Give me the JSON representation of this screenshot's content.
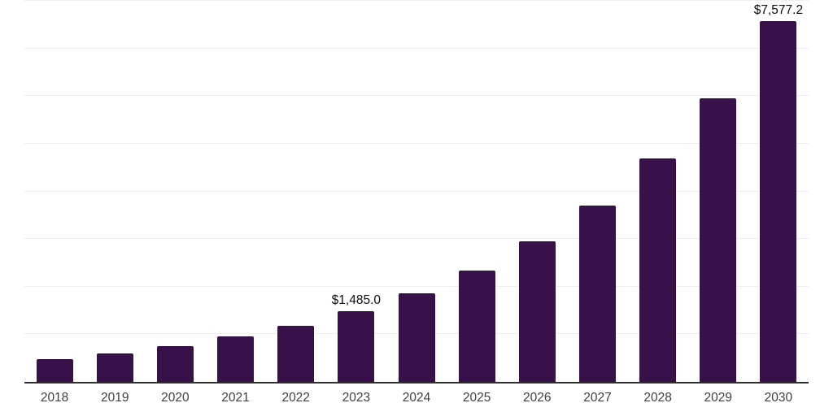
{
  "chart_data": {
    "type": "bar",
    "categories": [
      "2018",
      "2019",
      "2020",
      "2021",
      "2022",
      "2023",
      "2024",
      "2025",
      "2026",
      "2027",
      "2028",
      "2029",
      "2030"
    ],
    "values": [
      483,
      597,
      756,
      948,
      1175,
      1485.0,
      1866,
      2343,
      2948,
      3698,
      4693,
      5955,
      7577.2
    ],
    "value_labels": [
      "",
      "",
      "",
      "",
      "",
      "$1,485.0",
      "",
      "",
      "",
      "",
      "",
      "",
      "$7,577.2"
    ],
    "title": "",
    "xlabel": "",
    "ylabel": "",
    "ylim": [
      0,
      8000
    ],
    "gridline_interval": 1000,
    "grid": true,
    "legend": false,
    "colors": {
      "bar": "#38114a",
      "gridline": "#eeeeee",
      "axis_line": "#2e2e2e",
      "tick_text": "#404040",
      "value_label_text": "#0d0d0d",
      "background": "#ffffff"
    }
  }
}
